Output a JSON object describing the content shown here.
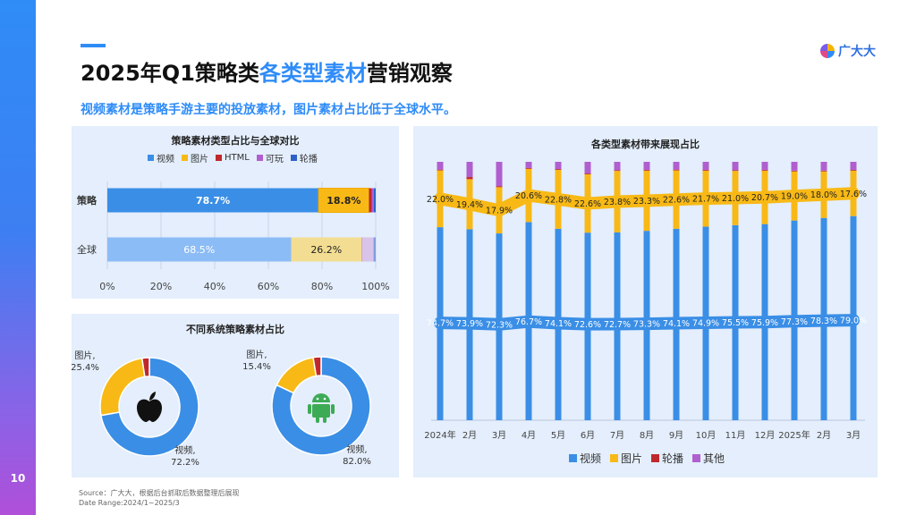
{
  "page": {
    "number": "10",
    "title_pre": "2025年Q1策略类",
    "title_hl": "各类型素材",
    "title_post": "营销观察",
    "subtitle": "视频素材是策略手游主要的投放素材，图片素材占比低于全球水平。",
    "logo_text": "广大大",
    "source_line1": "Source：广大大，根据后台抓取后数据整理后展现",
    "source_line2": "Date Range:2024/1~2025/3"
  },
  "colors": {
    "video": "#3a8ee6",
    "image": "#f8b916",
    "html": "#c0282d",
    "playable": "#b05fcf",
    "carousel": "#2e62c6",
    "other": "#b05fcf",
    "accent": "#2f8cf7"
  },
  "chart_data": [
    {
      "type": "bar",
      "orientation": "horizontal",
      "stacked": true,
      "title": "策略素材类型占比与全球对比",
      "categories": [
        "策略",
        "全球"
      ],
      "series": [
        {
          "name": "视频",
          "values": [
            78.7,
            68.5
          ]
        },
        {
          "name": "图片",
          "values": [
            18.8,
            26.2
          ]
        },
        {
          "name": "HTML",
          "values": [
            1.0,
            0.3
          ]
        },
        {
          "name": "可玩",
          "values": [
            0.8,
            4.2
          ]
        },
        {
          "name": "轮播",
          "values": [
            0.7,
            0.8
          ]
        }
      ],
      "value_labels": [
        [
          "78.7%",
          "18.8%"
        ],
        [
          "68.5%",
          "26.2%"
        ]
      ],
      "x_ticks": [
        "0%",
        "20%",
        "40%",
        "60%",
        "80%",
        "100%"
      ],
      "xlim": [
        0,
        100
      ],
      "legend_position": "top"
    },
    {
      "type": "pie",
      "title": "不同系统策略素材占比",
      "charts": [
        {
          "name": "iOS",
          "icon": "apple-icon",
          "slices": [
            {
              "label": "视频",
              "value": 72.2,
              "text": "视频,\n72.2%"
            },
            {
              "label": "图片",
              "value": 25.4,
              "text": "图片,\n25.4%"
            },
            {
              "label": "轮播",
              "value": 2.4
            }
          ]
        },
        {
          "name": "Android",
          "icon": "android-icon",
          "slices": [
            {
              "label": "视频",
              "value": 82.0,
              "text": "视频,\n82.0%"
            },
            {
              "label": "图片",
              "value": 15.4,
              "text": "图片,\n15.4%"
            },
            {
              "label": "轮播",
              "value": 2.6
            }
          ]
        }
      ]
    },
    {
      "type": "bar",
      "stacked": true,
      "title": "各类型素材带来展现占比",
      "categories": [
        "2024年",
        "2月",
        "3月",
        "4月",
        "5月",
        "6月",
        "7月",
        "8月",
        "9月",
        "10月",
        "11月",
        "12月",
        "2025年",
        "2月",
        "3月"
      ],
      "series": [
        {
          "name": "视频",
          "values": [
            74.7,
            73.9,
            72.3,
            76.7,
            74.1,
            72.6,
            72.7,
            73.3,
            74.1,
            74.9,
            75.5,
            75.9,
            77.3,
            78.3,
            79.0
          ]
        },
        {
          "name": "图片",
          "values": [
            22.0,
            19.4,
            17.9,
            20.6,
            22.8,
            22.6,
            23.8,
            23.3,
            22.6,
            21.7,
            21.0,
            20.7,
            19.0,
            18.0,
            17.6
          ]
        },
        {
          "name": "轮播",
          "values": [
            0.3,
            0.8,
            0.4,
            0.3,
            0.3,
            0.3,
            0.3,
            0.3,
            0.3,
            0.3,
            0.3,
            0.3,
            0.3,
            0.3,
            0.3
          ]
        },
        {
          "name": "其他",
          "values": [
            3.0,
            5.9,
            9.4,
            2.4,
            2.8,
            4.5,
            3.2,
            3.1,
            3.0,
            3.1,
            3.2,
            3.1,
            3.4,
            3.4,
            3.1
          ]
        }
      ],
      "labels": {
        "video": [
          "74.7%",
          "73.9%",
          "72.3%",
          "76.7%",
          "74.1%",
          "72.6%",
          "72.7%",
          "73.3%",
          "74.1%",
          "74.9%",
          "75.5%",
          "75.9%",
          "77.3%",
          "78.3%",
          "79.0%"
        ],
        "image": [
          "22.0%",
          "19.4%",
          "17.9%",
          "20.6%",
          "22.8%",
          "22.6%",
          "23.8%",
          "23.3%",
          "22.6%",
          "21.7%",
          "21.0%",
          "20.7%",
          "19.0%",
          "18.0%",
          "17.6%"
        ]
      },
      "ylim": [
        0,
        100
      ],
      "legend_position": "bottom"
    }
  ]
}
